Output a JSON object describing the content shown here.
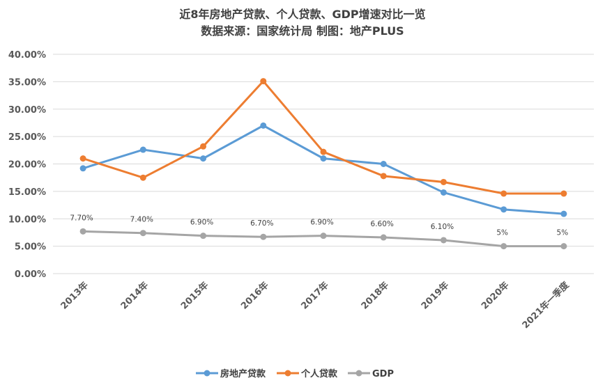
{
  "chart_data": {
    "type": "line",
    "title": "近8年房地产贷款、个人贷款、GDP增速对比一览",
    "subtitle": "数据来源：国家统计局 制图：地产PLUS",
    "categories": [
      "2013年",
      "2014年",
      "2015年",
      "2016年",
      "2017年",
      "2018年",
      "2019年",
      "2020年",
      "2021年一季度"
    ],
    "ylim": [
      0,
      40
    ],
    "yticks": [
      "0.00%",
      "5.00%",
      "10.00%",
      "15.00%",
      "20.00%",
      "25.00%",
      "30.00%",
      "35.00%",
      "40.00%"
    ],
    "grid": true,
    "legend_position": "bottom",
    "series": [
      {
        "name": "房地产贷款",
        "color": "#5b9bd5",
        "values": [
          19.2,
          22.6,
          21.0,
          27.0,
          21.0,
          20.0,
          14.8,
          11.7,
          10.9
        ]
      },
      {
        "name": "个人贷款",
        "color": "#ed7d31",
        "values": [
          21.0,
          17.5,
          23.2,
          35.1,
          22.2,
          17.8,
          16.7,
          14.6,
          14.6
        ]
      },
      {
        "name": "GDP",
        "color": "#a5a5a5",
        "values": [
          7.7,
          7.4,
          6.9,
          6.7,
          6.9,
          6.6,
          6.1,
          5.0,
          5.0
        ],
        "data_labels": [
          "7.70%",
          "7.40%",
          "6.90%",
          "6.70%",
          "6.90%",
          "6.60%",
          "6.10%",
          "5%",
          "5%"
        ]
      }
    ]
  }
}
